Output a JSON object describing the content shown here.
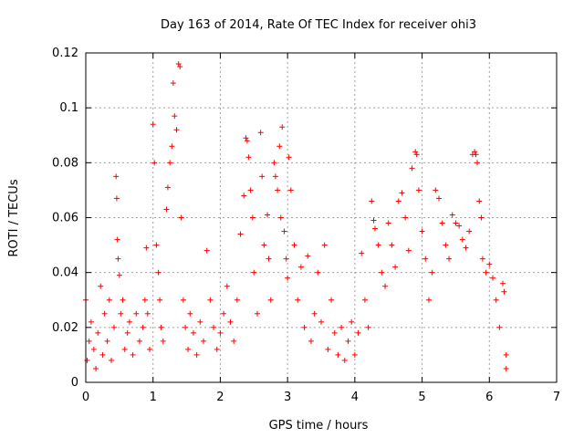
{
  "chart_data": {
    "type": "scatter",
    "title": "Day 163 of 2014, Rate Of TEC Index for receiver ohi3",
    "xlabel": "GPS time / hours",
    "ylabel": "ROTI / TECUs",
    "xlim": [
      0,
      7
    ],
    "ylim": [
      0,
      0.12
    ],
    "x_ticks": [
      "0",
      "1",
      "2",
      "3",
      "4",
      "5",
      "6",
      "7"
    ],
    "y_ticks": [
      "0",
      "0.02",
      "0.04",
      "0.06",
      "0.08",
      "0.1",
      "0.12"
    ],
    "x_tick_values": [
      0,
      1,
      2,
      3,
      4,
      5,
      6,
      7
    ],
    "y_tick_values": [
      0,
      0.02,
      0.04,
      0.06,
      0.08,
      0.1,
      0.12
    ],
    "grid": true,
    "marker": "+",
    "color": "#ff0000",
    "series": [
      {
        "name": "ROTI",
        "points": [
          [
            0.0,
            0.03
          ],
          [
            0.02,
            0.008
          ],
          [
            0.05,
            0.015
          ],
          [
            0.08,
            0.022
          ],
          [
            0.12,
            0.012
          ],
          [
            0.15,
            0.005
          ],
          [
            0.18,
            0.018
          ],
          [
            0.22,
            0.035
          ],
          [
            0.25,
            0.01
          ],
          [
            0.28,
            0.025
          ],
          [
            0.32,
            0.015
          ],
          [
            0.35,
            0.03
          ],
          [
            0.38,
            0.008
          ],
          [
            0.42,
            0.02
          ],
          [
            0.45,
            0.075
          ],
          [
            0.46,
            0.067
          ],
          [
            0.47,
            0.052
          ],
          [
            0.48,
            0.045
          ],
          [
            0.5,
            0.039
          ],
          [
            0.52,
            0.025
          ],
          [
            0.55,
            0.03
          ],
          [
            0.58,
            0.012
          ],
          [
            0.62,
            0.018
          ],
          [
            0.65,
            0.022
          ],
          [
            0.7,
            0.01
          ],
          [
            0.75,
            0.025
          ],
          [
            0.8,
            0.015
          ],
          [
            0.85,
            0.02
          ],
          [
            0.88,
            0.03
          ],
          [
            0.9,
            0.049
          ],
          [
            0.92,
            0.025
          ],
          [
            0.95,
            0.012
          ],
          [
            1.0,
            0.094
          ],
          [
            1.02,
            0.08
          ],
          [
            1.05,
            0.05
          ],
          [
            1.08,
            0.04
          ],
          [
            1.1,
            0.03
          ],
          [
            1.12,
            0.02
          ],
          [
            1.15,
            0.015
          ],
          [
            1.2,
            0.063
          ],
          [
            1.22,
            0.071
          ],
          [
            1.25,
            0.08
          ],
          [
            1.28,
            0.086
          ],
          [
            1.3,
            0.109
          ],
          [
            1.32,
            0.097
          ],
          [
            1.35,
            0.092
          ],
          [
            1.38,
            0.116
          ],
          [
            1.4,
            0.115
          ],
          [
            1.42,
            0.06
          ],
          [
            1.45,
            0.03
          ],
          [
            1.48,
            0.02
          ],
          [
            1.52,
            0.012
          ],
          [
            1.55,
            0.025
          ],
          [
            1.6,
            0.018
          ],
          [
            1.65,
            0.01
          ],
          [
            1.7,
            0.022
          ],
          [
            1.75,
            0.015
          ],
          [
            1.8,
            0.048
          ],
          [
            1.85,
            0.03
          ],
          [
            1.9,
            0.02
          ],
          [
            1.95,
            0.012
          ],
          [
            2.0,
            0.018
          ],
          [
            2.05,
            0.025
          ],
          [
            2.1,
            0.035
          ],
          [
            2.15,
            0.022
          ],
          [
            2.2,
            0.015
          ],
          [
            2.25,
            0.03
          ],
          [
            2.3,
            0.054
          ],
          [
            2.35,
            0.068
          ],
          [
            2.38,
            0.089
          ],
          [
            2.4,
            0.088
          ],
          [
            2.42,
            0.082
          ],
          [
            2.45,
            0.07
          ],
          [
            2.48,
            0.06
          ],
          [
            2.5,
            0.04
          ],
          [
            2.55,
            0.025
          ],
          [
            2.6,
            0.091
          ],
          [
            2.62,
            0.075
          ],
          [
            2.65,
            0.05
          ],
          [
            2.7,
            0.061
          ],
          [
            2.72,
            0.045
          ],
          [
            2.75,
            0.03
          ],
          [
            2.8,
            0.08
          ],
          [
            2.82,
            0.075
          ],
          [
            2.85,
            0.07
          ],
          [
            2.88,
            0.086
          ],
          [
            2.9,
            0.06
          ],
          [
            2.92,
            0.093
          ],
          [
            2.95,
            0.055
          ],
          [
            2.98,
            0.045
          ],
          [
            3.0,
            0.038
          ],
          [
            3.02,
            0.082
          ],
          [
            3.05,
            0.07
          ],
          [
            3.1,
            0.05
          ],
          [
            3.15,
            0.03
          ],
          [
            3.2,
            0.042
          ],
          [
            3.25,
            0.02
          ],
          [
            3.3,
            0.046
          ],
          [
            3.35,
            0.015
          ],
          [
            3.4,
            0.025
          ],
          [
            3.45,
            0.04
          ],
          [
            3.5,
            0.022
          ],
          [
            3.55,
            0.05
          ],
          [
            3.6,
            0.012
          ],
          [
            3.65,
            0.03
          ],
          [
            3.7,
            0.018
          ],
          [
            3.75,
            0.01
          ],
          [
            3.8,
            0.02
          ],
          [
            3.85,
            0.008
          ],
          [
            3.9,
            0.015
          ],
          [
            3.95,
            0.022
          ],
          [
            4.0,
            0.01
          ],
          [
            4.05,
            0.018
          ],
          [
            4.1,
            0.047
          ],
          [
            4.15,
            0.03
          ],
          [
            4.2,
            0.02
          ],
          [
            4.25,
            0.066
          ],
          [
            4.28,
            0.059
          ],
          [
            4.3,
            0.056
          ],
          [
            4.35,
            0.05
          ],
          [
            4.4,
            0.04
          ],
          [
            4.45,
            0.035
          ],
          [
            4.5,
            0.058
          ],
          [
            4.55,
            0.05
          ],
          [
            4.6,
            0.042
          ],
          [
            4.65,
            0.066
          ],
          [
            4.7,
            0.069
          ],
          [
            4.75,
            0.06
          ],
          [
            4.8,
            0.048
          ],
          [
            4.85,
            0.078
          ],
          [
            4.9,
            0.084
          ],
          [
            4.92,
            0.083
          ],
          [
            4.95,
            0.07
          ],
          [
            5.0,
            0.055
          ],
          [
            5.05,
            0.045
          ],
          [
            5.1,
            0.03
          ],
          [
            5.15,
            0.04
          ],
          [
            5.2,
            0.07
          ],
          [
            5.25,
            0.067
          ],
          [
            5.3,
            0.058
          ],
          [
            5.35,
            0.05
          ],
          [
            5.4,
            0.045
          ],
          [
            5.45,
            0.061
          ],
          [
            5.5,
            0.058
          ],
          [
            5.55,
            0.057
          ],
          [
            5.6,
            0.052
          ],
          [
            5.65,
            0.049
          ],
          [
            5.7,
            0.055
          ],
          [
            5.75,
            0.083
          ],
          [
            5.78,
            0.084
          ],
          [
            5.8,
            0.083
          ],
          [
            5.82,
            0.08
          ],
          [
            5.85,
            0.066
          ],
          [
            5.88,
            0.06
          ],
          [
            5.9,
            0.045
          ],
          [
            5.95,
            0.04
          ],
          [
            6.0,
            0.043
          ],
          [
            6.05,
            0.038
          ],
          [
            6.1,
            0.03
          ],
          [
            6.15,
            0.02
          ],
          [
            6.2,
            0.036
          ],
          [
            6.22,
            0.033
          ],
          [
            6.25,
            0.01
          ],
          [
            6.25,
            0.005
          ]
        ]
      }
    ]
  }
}
